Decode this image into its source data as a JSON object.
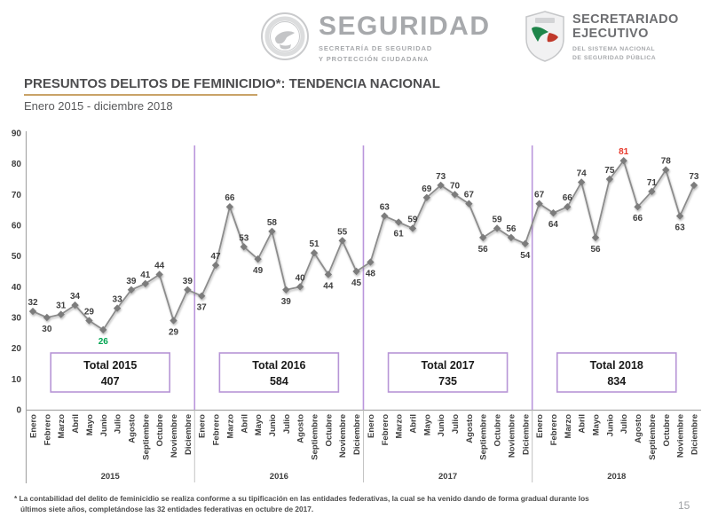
{
  "header": {
    "logo_seguridad": {
      "seal_icon": "mexican-eagle-seal",
      "title": "SEGURIDAD",
      "subtitle_line1": "SECRETARÍA DE SEGURIDAD",
      "subtitle_line2": "Y PROTECCIÓN CIUDADANA"
    },
    "logo_secretariado": {
      "shield_icon": "mexico-map-shield",
      "title_line1": "SECRETARIADO",
      "title_line2": "EJECUTIVO",
      "subtitle_line1": "DEL SISTEMA NACIONAL",
      "subtitle_line2": "DE SEGURIDAD PÚBLICA"
    }
  },
  "title": "PRESUNTOS DELITOS DE FEMINICIDIO*: TENDENCIA NACIONAL",
  "subtitle": "Enero 2015 - diciembre 2018",
  "chart_data": {
    "type": "line",
    "title": "Presuntos delitos de feminicidio: tendencia nacional",
    "ylim": [
      0,
      90
    ],
    "yticks": [
      0,
      10,
      20,
      30,
      40,
      50,
      60,
      70,
      80,
      90
    ],
    "grid": false,
    "legend": "none",
    "months": [
      "Enero",
      "Febrero",
      "Marzo",
      "Abril",
      "Mayo",
      "Junio",
      "Julio",
      "Agosto",
      "Septiembre",
      "Octubre",
      "Noviembre",
      "Diciembre"
    ],
    "years": [
      "2015",
      "2016",
      "2017",
      "2018"
    ],
    "series": [
      {
        "name": "Presuntos delitos de feminicidio",
        "values": [
          32,
          30,
          31,
          34,
          29,
          26,
          33,
          39,
          41,
          44,
          29,
          39,
          37,
          47,
          66,
          53,
          49,
          58,
          39,
          40,
          51,
          44,
          55,
          45,
          48,
          63,
          61,
          59,
          69,
          73,
          70,
          67,
          56,
          59,
          56,
          54,
          67,
          64,
          66,
          74,
          56,
          75,
          81,
          66,
          71,
          78,
          63,
          73
        ]
      }
    ],
    "label_positions": [
      "a",
      "b",
      "a",
      "a",
      "a",
      "b",
      "a",
      "a",
      "a",
      "a",
      "b",
      "a",
      "b",
      "a",
      "a",
      "a",
      "b",
      "a",
      "b",
      "a",
      "a",
      "b",
      "a",
      "b",
      "b",
      "a",
      "b",
      "a",
      "a",
      "a",
      "a",
      "a",
      "b",
      "a",
      "a",
      "b",
      "a",
      "b",
      "a",
      "a",
      "b",
      "a",
      "a",
      "b",
      "a",
      "a",
      "b",
      "a"
    ],
    "highlight_indices": {
      "5": "#00A551",
      "42": "#E8392B"
    },
    "totals": [
      {
        "label": "Total 2015",
        "value": "407"
      },
      {
        "label": "Total 2016",
        "value": "584"
      },
      {
        "label": "Total 2017",
        "value": "735"
      },
      {
        "label": "Total 2018",
        "value": "834"
      }
    ],
    "colors": {
      "line": "#8C8C8C",
      "marker": "#7C7C7C",
      "separator": "#BA96DC",
      "box_border": "#B795D6",
      "label": "#3F3F3F",
      "axis": "#A8A8A8",
      "min_green": "#00A551",
      "max_red": "#E8392B",
      "title_underline": "#C9A368"
    }
  },
  "footnote": {
    "line1": "* La contabilidad del delito de feminicidio se realiza conforme a su tipificación en las entidades federativas, la cual se ha venido dando de forma gradual durante los",
    "line2": "últimos siete años, completándose las 32 entidades federativas en octubre de 2017."
  },
  "page_number": "15"
}
